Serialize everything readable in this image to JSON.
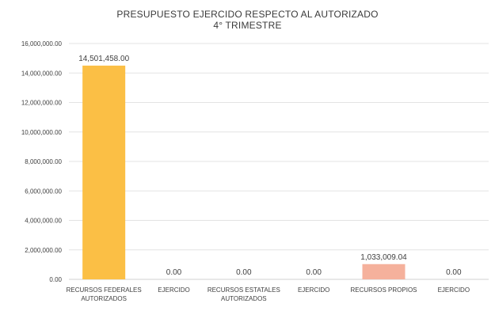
{
  "chart_data": {
    "type": "bar",
    "title": "PRESUPUESTO EJERCIDO RESPECTO AL AUTORIZADO",
    "subtitle": "4° TRIMESTRE",
    "categories": [
      [
        "RECURSOS FEDERALES",
        "AUTORIZADOS"
      ],
      [
        "EJERCIDO"
      ],
      [
        "RECURSOS ESTATALES",
        "AUTORIZADOS"
      ],
      [
        "EJERCIDO"
      ],
      [
        "RECURSOS PROPIOS"
      ],
      [
        "EJERCIDO"
      ]
    ],
    "values": [
      14501458.0,
      0.0,
      0.0,
      0.0,
      1033009.04,
      0.0
    ],
    "data_labels": [
      "14,501,458.00",
      "0.00",
      "0.00",
      "0.00",
      "1,033,009.04",
      "0.00"
    ],
    "bar_colors": [
      "#fbbf45",
      "#fbbf45",
      "#fbbf45",
      "#fbbf45",
      "#f5b19c",
      "#f5b19c"
    ],
    "ylim": [
      0,
      16000000
    ],
    "yticks": [
      0,
      2000000,
      4000000,
      6000000,
      8000000,
      10000000,
      12000000,
      14000000,
      16000000
    ],
    "ytick_labels": [
      "0.00",
      "2,000,000.00",
      "4,000,000.00",
      "6,000,000.00",
      "8,000,000.00",
      "10,000,000.00",
      "12,000,000.00",
      "14,000,000.00",
      "16,000,000.00"
    ],
    "grid": true,
    "legend": "none",
    "xlabel": "",
    "ylabel": ""
  }
}
